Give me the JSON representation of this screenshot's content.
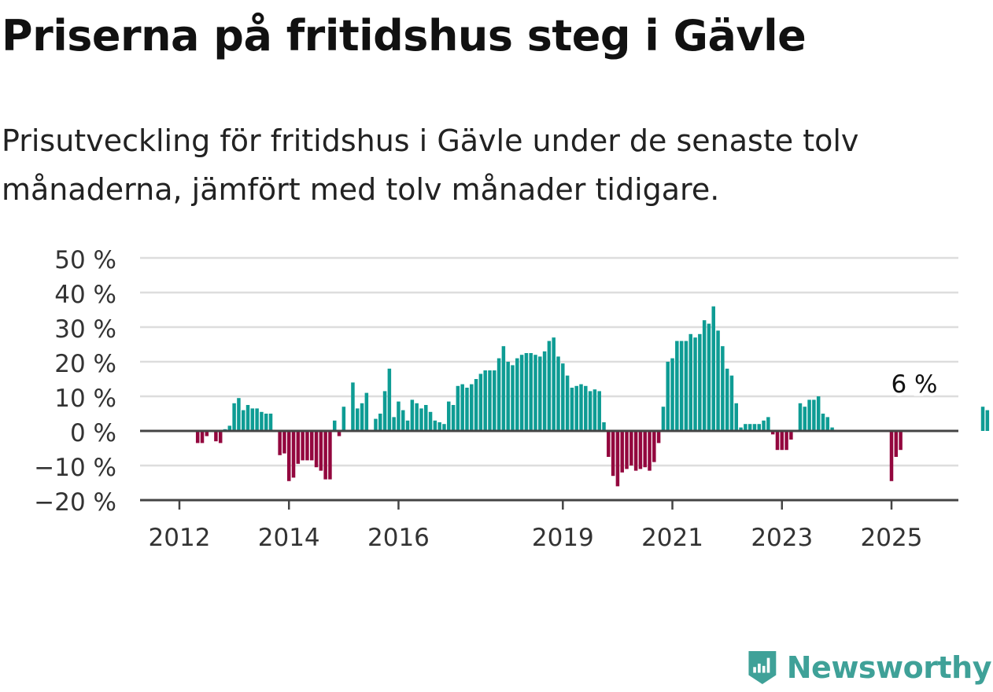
{
  "title": "Priserna på fritidshus steg i Gävle",
  "subtitle": "Prisutveckling för fritidshus i Gävle under de senaste tolv månaderna, jämfört med tolv månader tidigare.",
  "brand": {
    "name": "Newsworthy",
    "color": "#3fa198",
    "icon": "bar-chart-badge-icon"
  },
  "colors": {
    "positive": "#0e9c94",
    "negative": "#93073e",
    "grid": "#dddddd",
    "zero_line": "#444444",
    "axis": "#444444",
    "text": "#333333"
  },
  "chart_data": {
    "type": "bar",
    "ylim": [
      -20,
      50
    ],
    "y_ticks": [
      50,
      40,
      30,
      20,
      10,
      0,
      -10,
      -20
    ],
    "y_tick_labels": [
      "50 %",
      "40 %",
      "30 %",
      "20 %",
      "10 %",
      "0 %",
      "−10 %",
      "−20 %"
    ],
    "x_ticks": [
      {
        "label": "2012",
        "date": "2012-01"
      },
      {
        "label": "2014",
        "date": "2014-01"
      },
      {
        "label": "2016",
        "date": "2016-01"
      },
      {
        "label": "2019",
        "date": "2019-01"
      },
      {
        "label": "2021",
        "date": "2021-01"
      },
      {
        "label": "2023",
        "date": "2023-01"
      },
      {
        "label": "2025",
        "date": "2025-01"
      }
    ],
    "start_date": "2011-05",
    "grid": true,
    "annotation": {
      "text": "6 %",
      "date": "2025-06",
      "value": 6
    },
    "values": [
      0,
      0,
      0,
      0,
      0,
      0,
      0,
      0,
      0,
      0,
      0,
      0,
      -3.5,
      -3.5,
      -1.5,
      0,
      -3,
      -3.5,
      0.5,
      1.5,
      8,
      9.5,
      6,
      7.5,
      6.5,
      6.5,
      5.5,
      5,
      5,
      0,
      -7,
      -6.5,
      -14.5,
      -13.5,
      -9.5,
      -8.5,
      -8.5,
      -8.5,
      -10.5,
      -11.5,
      -14,
      -14,
      3,
      -1.5,
      7,
      0,
      14,
      6.5,
      8,
      11,
      0,
      3.5,
      5,
      11.5,
      18,
      4,
      8.5,
      6,
      3,
      9,
      8,
      6.5,
      7.5,
      5.5,
      3,
      2.5,
      2,
      8.5,
      7.5,
      13,
      13.5,
      12.5,
      13.5,
      15,
      16.5,
      17.5,
      17.5,
      17.5,
      21,
      24.5,
      20,
      19,
      21,
      22,
      22.5,
      22.5,
      22,
      21.5,
      23,
      26,
      27,
      21.5,
      19.5,
      16,
      12.5,
      13,
      13.5,
      13,
      11.5,
      12,
      11.5,
      2.5,
      -7.5,
      -13,
      -16,
      -12,
      -11,
      -10,
      -11.5,
      -11,
      -10.5,
      -11.5,
      -9,
      -3.5,
      7,
      20,
      21,
      26,
      26,
      26,
      28,
      27,
      28,
      32,
      31,
      36,
      29,
      24.5,
      18,
      16,
      8,
      1,
      2,
      2,
      2,
      2,
      3,
      4,
      -1,
      -5.5,
      -5.5,
      -5.5,
      -2.5,
      0,
      8,
      7,
      9,
      9,
      10,
      5,
      4,
      1,
      0,
      0,
      0,
      0,
      0,
      0,
      0,
      0,
      0,
      0,
      0,
      0,
      -14.5,
      -7.5,
      -5.5,
      0,
      0,
      0,
      0,
      0,
      0,
      0,
      0,
      0,
      0,
      0,
      0,
      0,
      0,
      0,
      0,
      0,
      7,
      6
    ]
  }
}
